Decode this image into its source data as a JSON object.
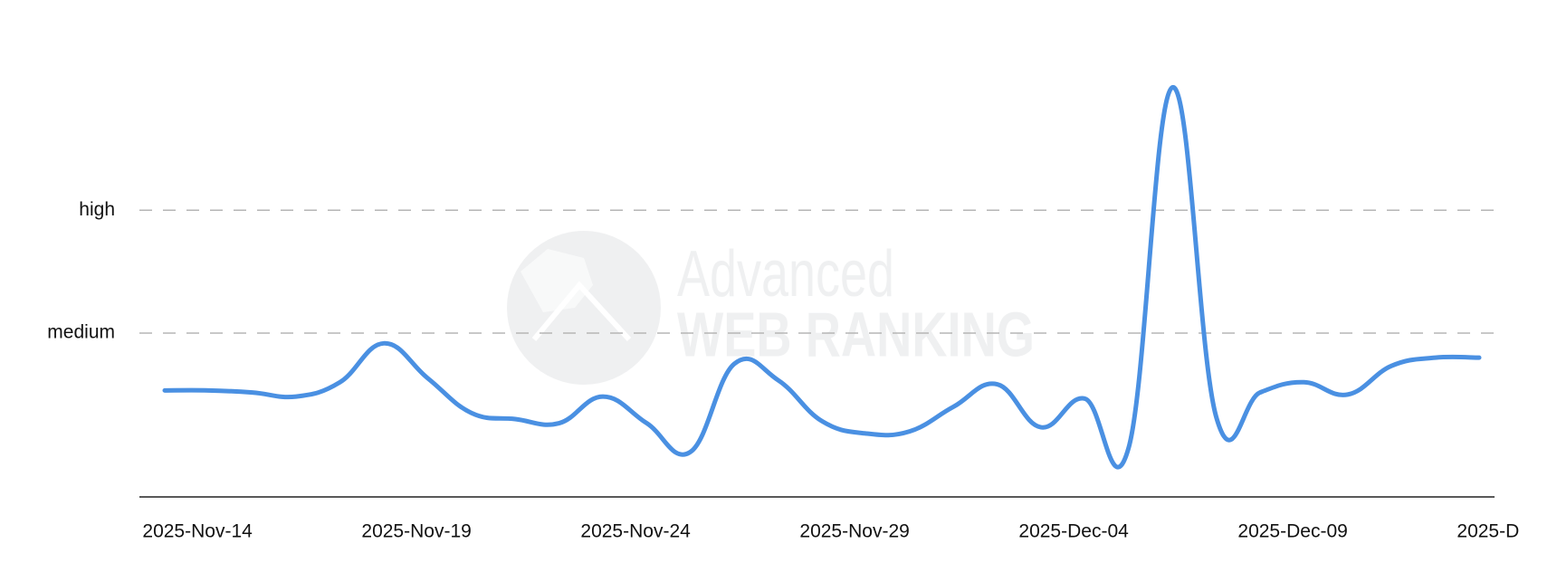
{
  "chart_data": {
    "type": "line",
    "watermark": [
      "Advanced",
      "WEB RANKING"
    ],
    "categories": [
      null,
      "2025-Nov-14",
      null,
      null,
      null,
      null,
      "2025-Nov-19",
      null,
      null,
      null,
      null,
      "2025-Nov-24",
      null,
      null,
      null,
      null,
      "2025-Nov-29",
      null,
      null,
      null,
      null,
      "2025-Dec-04",
      null,
      null,
      null,
      null,
      "2025-Dec-09",
      null,
      null,
      null,
      null,
      "2025-D"
    ],
    "series": [
      {
        "color": "#4a90e2",
        "values": [
          2.6,
          2.6,
          2.55,
          2.45,
          2.8,
          3.75,
          2.9,
          2.05,
          1.9,
          1.8,
          2.45,
          1.8,
          1.1,
          3.25,
          2.85,
          1.85,
          1.55,
          1.6,
          2.2,
          2.75,
          1.7,
          2.4,
          1.2,
          10,
          1.95,
          2.55,
          2.8,
          2.5,
          3.2,
          3.4,
          3.4,
          null
        ]
      }
    ],
    "ylim": [
      0,
      10
    ],
    "yticks": [
      {
        "value": 4,
        "label": "medium"
      },
      {
        "value": 7,
        "label": "high"
      }
    ],
    "grid": true
  }
}
